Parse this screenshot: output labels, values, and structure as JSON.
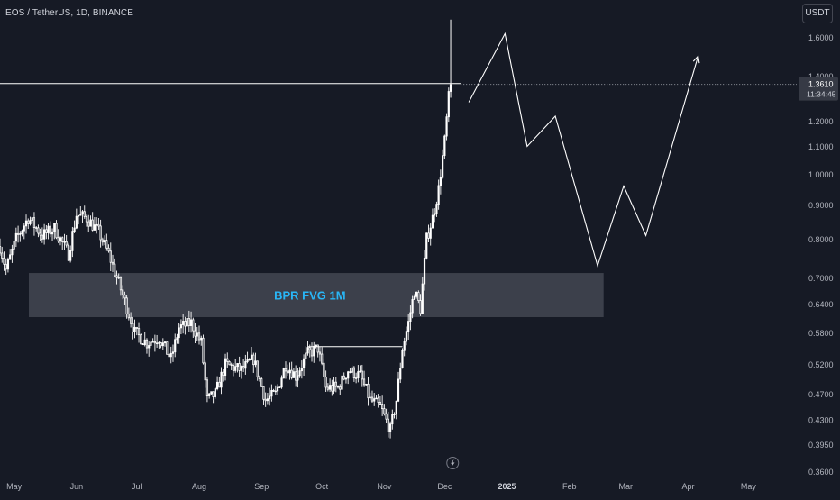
{
  "header": {
    "symbol_title": "EOS / TetherUS, 1D, BINANCE",
    "currency_button": "USDT"
  },
  "price_label": {
    "price": "1.3610",
    "countdown": "11:34:45"
  },
  "colors": {
    "background": "#161a25",
    "candle": "#ffffff",
    "zone_fill": "#5d606b",
    "zone_text": "#29b6f6",
    "axis_text": "#b2b5be",
    "drawing": "#ffffff"
  },
  "icons": {
    "event_marker": "lightning-bolt-icon"
  },
  "chart_data": {
    "type": "candlestick",
    "y_scale": "log",
    "ylim": [
      0.355,
      1.72
    ],
    "y_ticks": [
      1.6,
      1.4,
      1.2,
      1.1,
      1.0,
      0.9,
      0.8,
      0.7,
      0.64,
      0.58,
      0.52,
      0.47,
      0.43,
      0.395,
      0.36
    ],
    "y_tick_labels": [
      "1.6000",
      "1.4000",
      "1.2000",
      "1.1000",
      "1.0000",
      "0.9000",
      "0.8000",
      "0.7000",
      "0.6400",
      "0.5800",
      "0.5200",
      "0.4700",
      "0.4300",
      "0.3950",
      "0.3600"
    ],
    "x_domain": [
      "2024-04-24",
      "2025-05-25"
    ],
    "x_ticks": [
      "2024-05-01",
      "2024-06-01",
      "2024-07-01",
      "2024-08-01",
      "2024-09-01",
      "2024-10-01",
      "2024-11-01",
      "2024-12-01",
      "2025-01-01",
      "2025-02-01",
      "2025-03-01",
      "2025-04-01",
      "2025-05-01"
    ],
    "x_tick_labels": [
      "May",
      "Jun",
      "Jul",
      "Aug",
      "Sep",
      "Oct",
      "Nov",
      "Dec",
      "2025",
      "Feb",
      "Mar",
      "Apr",
      "May"
    ],
    "x_tick_bold": [
      false,
      false,
      false,
      false,
      false,
      false,
      false,
      false,
      true,
      false,
      false,
      false,
      false
    ],
    "price_anchors": [
      [
        "2024-04-24",
        0.78
      ],
      [
        "2024-04-27",
        0.72
      ],
      [
        "2024-05-02",
        0.8
      ],
      [
        "2024-05-08",
        0.86
      ],
      [
        "2024-05-15",
        0.81
      ],
      [
        "2024-05-21",
        0.83
      ],
      [
        "2024-05-28",
        0.76
      ],
      [
        "2024-06-01",
        0.87
      ],
      [
        "2024-06-06",
        0.86
      ],
      [
        "2024-06-12",
        0.82
      ],
      [
        "2024-06-17",
        0.76
      ],
      [
        "2024-06-24",
        0.66
      ],
      [
        "2024-06-30",
        0.58
      ],
      [
        "2024-07-06",
        0.56
      ],
      [
        "2024-07-12",
        0.57
      ],
      [
        "2024-07-18",
        0.53
      ],
      [
        "2024-07-22",
        0.59
      ],
      [
        "2024-07-28",
        0.6
      ],
      [
        "2024-08-02",
        0.56
      ],
      [
        "2024-08-05",
        0.46
      ],
      [
        "2024-08-09",
        0.47
      ],
      [
        "2024-08-14",
        0.52
      ],
      [
        "2024-08-22",
        0.51
      ],
      [
        "2024-08-28",
        0.53
      ],
      [
        "2024-09-03",
        0.46
      ],
      [
        "2024-09-08",
        0.47
      ],
      [
        "2024-09-13",
        0.52
      ],
      [
        "2024-09-18",
        0.5
      ],
      [
        "2024-09-24",
        0.54
      ],
      [
        "2024-09-29",
        0.55
      ],
      [
        "2024-10-03",
        0.48
      ],
      [
        "2024-10-09",
        0.48
      ],
      [
        "2024-10-14",
        0.51
      ],
      [
        "2024-10-20",
        0.5
      ],
      [
        "2024-10-25",
        0.46
      ],
      [
        "2024-10-30",
        0.45
      ],
      [
        "2024-11-04",
        0.415
      ],
      [
        "2024-11-07",
        0.46
      ],
      [
        "2024-11-10",
        0.55
      ],
      [
        "2024-11-13",
        0.6
      ],
      [
        "2024-11-16",
        0.67
      ],
      [
        "2024-11-19",
        0.63
      ],
      [
        "2024-11-22",
        0.8
      ],
      [
        "2024-11-25",
        0.86
      ],
      [
        "2024-11-28",
        0.95
      ],
      [
        "2024-12-01",
        1.12
      ],
      [
        "2024-12-03",
        1.3
      ],
      [
        "2024-12-04",
        1.36
      ]
    ],
    "zone": {
      "label": "BPR FVG 1M",
      "x_start": "2024-04-24",
      "x_end": "2025-02-18",
      "y_top": 0.712,
      "y_bottom": 0.612
    },
    "resistance_line": {
      "y": 1.365,
      "x_start": "2024-04-13",
      "x_end": "2024-12-09"
    },
    "current_price_line": {
      "y": 1.361,
      "style": "dotted"
    },
    "support_line": {
      "y": 0.553,
      "x_start": "2024-09-24",
      "x_end": "2024-11-10"
    },
    "projection_path": [
      [
        "2024-12-13",
        1.28
      ],
      [
        "2024-12-31",
        1.62
      ],
      [
        "2025-01-11",
        1.1
      ],
      [
        "2025-01-25",
        1.22
      ],
      [
        "2025-02-15",
        0.73
      ],
      [
        "2025-02-28",
        0.96
      ],
      [
        "2025-03-11",
        0.81
      ],
      [
        "2025-04-06",
        1.5
      ]
    ],
    "event_marker_date": "2024-12-05"
  }
}
